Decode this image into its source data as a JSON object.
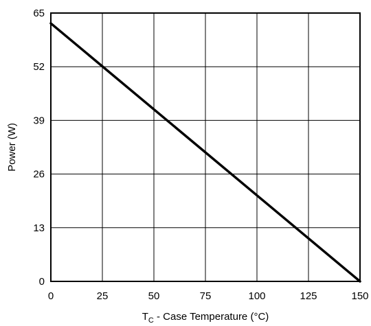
{
  "chart_data": {
    "type": "line",
    "title": "",
    "xlabel": {
      "prefix": "T",
      "subscript": "C",
      "suffix": " - Case Temperature (°C)"
    },
    "ylabel": "Power (W)",
    "xlim": [
      0,
      150
    ],
    "ylim": [
      0,
      65
    ],
    "x_ticks": [
      0,
      25,
      50,
      75,
      100,
      125,
      150
    ],
    "y_ticks": [
      0,
      13,
      26,
      39,
      52,
      65
    ],
    "x_tick_labels": [
      "0",
      "25",
      "50",
      "75",
      "100",
      "125",
      "150"
    ],
    "y_tick_labels": [
      "0",
      "13",
      "26",
      "39",
      "52",
      "65"
    ],
    "grid": true,
    "legend": "none",
    "series": [
      {
        "x": [
          0,
          150
        ],
        "y": [
          62.5,
          0
        ],
        "color": "#000000"
      }
    ]
  }
}
